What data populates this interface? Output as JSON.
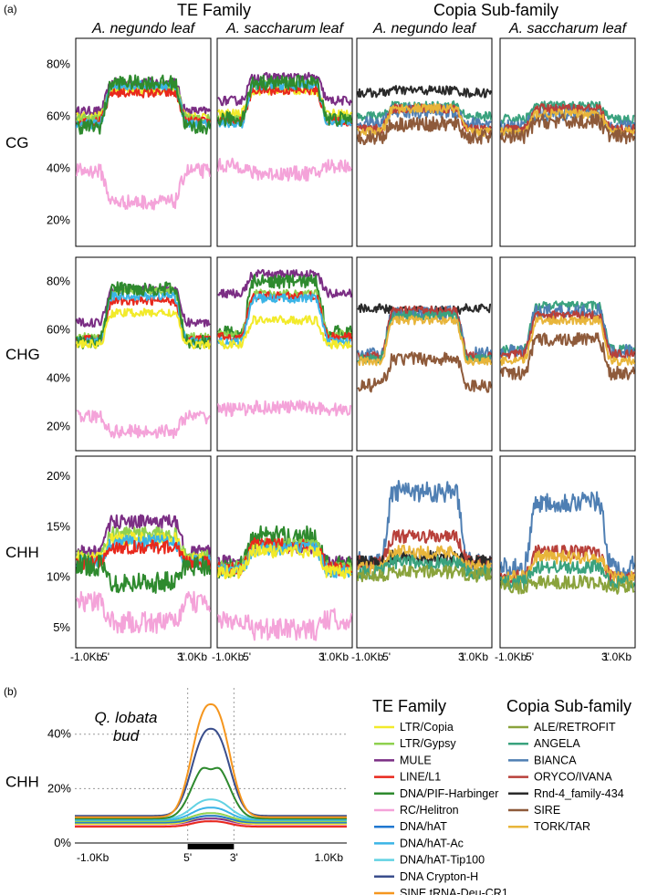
{
  "figure": {
    "label_a": "(a)",
    "label_b": "(b)"
  },
  "colors": {
    "LTR/Copia": "#f2ea2a",
    "LTR/Gypsy": "#8fd14f",
    "MULE": "#7b2e84",
    "LINE/L1": "#e8281c",
    "DNA/PIF-Harbinger": "#2e8a2e",
    "RC/Helitron": "#f4a3d9",
    "DNA/hAT": "#1f77d0",
    "DNA/hAT-Ac": "#3ab4e6",
    "DNA/hAT-Tip100": "#62d2e3",
    "DNA Crypton-H": "#3a4e8c",
    "SINE tRNA-Deu-CR1": "#f5961e",
    "ALE/RETROFIT": "#8aa33c",
    "ANGELA": "#3aa27e",
    "BIANCA": "#4f7fb3",
    "ORYCO/IVANA": "#b8403a",
    "Rnd-4_family-434": "#2a2a2a",
    "SIRE": "#8e5a3a",
    "TORK/TAR": "#e8b53a"
  },
  "chart_data": [
    {
      "type": "line",
      "panel": "a",
      "group_headers": [
        "TE Family",
        "Copia Sub-family"
      ],
      "column_titles": [
        "A. negundo leaf",
        "A. saccharum leaf",
        "A. negundo leaf",
        "A. saccharum leaf"
      ],
      "row_titles": [
        "CG",
        "CHG",
        "CHH"
      ],
      "x_ticks": [
        "-1.0Kb",
        "5'",
        "3'",
        "1.0Kb"
      ],
      "rows": [
        {
          "context": "CG",
          "ylim": [
            10,
            90
          ],
          "y_ticks": [
            "80%",
            "60%",
            "40%",
            "20%"
          ],
          "y_tick_values": [
            80,
            60,
            40,
            20
          ],
          "panels": [
            {
              "title": "A. negundo leaf",
              "series": [
                {
                  "name": "MULE",
                  "flank": 62,
                  "body": 73
                },
                {
                  "name": "LTR/Copia",
                  "flank": 60,
                  "body": 70
                },
                {
                  "name": "LTR/Gypsy",
                  "flank": 59,
                  "body": 72
                },
                {
                  "name": "LINE/L1",
                  "flank": 58,
                  "body": 69
                },
                {
                  "name": "DNA/hAT-Ac",
                  "flank": 57,
                  "body": 72
                },
                {
                  "name": "DNA/PIF-Harbinger",
                  "flank": 56,
                  "body": 73
                },
                {
                  "name": "RC/Helitron",
                  "flank": 39,
                  "body": 27
                }
              ]
            },
            {
              "title": "A. saccharum leaf",
              "series": [
                {
                  "name": "MULE",
                  "flank": 66,
                  "body": 75
                },
                {
                  "name": "LTR/Copia",
                  "flank": 61,
                  "body": 70
                },
                {
                  "name": "LTR/Gypsy",
                  "flank": 59,
                  "body": 72
                },
                {
                  "name": "LINE/L1",
                  "flank": 58,
                  "body": 70
                },
                {
                  "name": "DNA/hAT-Ac",
                  "flank": 57,
                  "body": 72
                },
                {
                  "name": "DNA/PIF-Harbinger",
                  "flank": 59,
                  "body": 73
                },
                {
                  "name": "RC/Helitron",
                  "flank": 41,
                  "body": 38
                }
              ]
            },
            {
              "title": "A. negundo leaf",
              "series": [
                {
                  "name": "Rnd-4_family-434",
                  "flank": 69,
                  "body": 70
                },
                {
                  "name": "ANGELA",
                  "flank": 60,
                  "body": 64
                },
                {
                  "name": "BIANCA",
                  "flank": 57,
                  "body": 62
                },
                {
                  "name": "ORYCO/IVANA",
                  "flank": 55,
                  "body": 63
                },
                {
                  "name": "TORK/TAR",
                  "flank": 54,
                  "body": 63
                },
                {
                  "name": "SIRE",
                  "flank": 52,
                  "body": 57
                }
              ]
            },
            {
              "title": "A. saccharum leaf",
              "series": [
                {
                  "name": "ANGELA",
                  "flank": 59,
                  "body": 64
                },
                {
                  "name": "BIANCA",
                  "flank": 56,
                  "body": 61
                },
                {
                  "name": "ORYCO/IVANA",
                  "flank": 55,
                  "body": 63
                },
                {
                  "name": "TORK/TAR",
                  "flank": 54,
                  "body": 61
                },
                {
                  "name": "SIRE",
                  "flank": 52,
                  "body": 58
                }
              ]
            }
          ]
        },
        {
          "context": "CHG",
          "ylim": [
            10,
            90
          ],
          "y_ticks": [
            "80%",
            "60%",
            "40%",
            "20%"
          ],
          "y_tick_values": [
            80,
            60,
            40,
            20
          ],
          "panels": [
            {
              "title": "A. negundo leaf",
              "series": [
                {
                  "name": "MULE",
                  "flank": 63,
                  "body": 77
                },
                {
                  "name": "LTR/Gypsy",
                  "flank": 57,
                  "body": 76
                },
                {
                  "name": "LINE/L1",
                  "flank": 56,
                  "body": 72
                },
                {
                  "name": "DNA/hAT-Ac",
                  "flank": 55,
                  "body": 74
                },
                {
                  "name": "DNA/PIF-Harbinger",
                  "flank": 55,
                  "body": 77
                },
                {
                  "name": "LTR/Copia",
                  "flank": 54,
                  "body": 67
                },
                {
                  "name": "RC/Helitron",
                  "flank": 24,
                  "body": 18
                }
              ]
            },
            {
              "title": "A. saccharum leaf",
              "series": [
                {
                  "name": "MULE",
                  "flank": 75,
                  "body": 83
                },
                {
                  "name": "DNA/PIF-Harbinger",
                  "flank": 59,
                  "body": 80
                },
                {
                  "name": "LTR/Gypsy",
                  "flank": 58,
                  "body": 75
                },
                {
                  "name": "LINE/L1",
                  "flank": 57,
                  "body": 74
                },
                {
                  "name": "DNA/hAT-Ac",
                  "flank": 55,
                  "body": 73
                },
                {
                  "name": "LTR/Copia",
                  "flank": 54,
                  "body": 64
                },
                {
                  "name": "RC/Helitron",
                  "flank": 27,
                  "body": 28
                }
              ]
            },
            {
              "title": "A. negundo leaf",
              "series": [
                {
                  "name": "Rnd-4_family-434",
                  "flank": 69,
                  "body": 68
                },
                {
                  "name": "BIANCA",
                  "flank": 50,
                  "body": 67
                },
                {
                  "name": "ORYCO/IVANA",
                  "flank": 49,
                  "body": 68
                },
                {
                  "name": "ANGELA",
                  "flank": 48,
                  "body": 66
                },
                {
                  "name": "TORK/TAR",
                  "flank": 47,
                  "body": 64
                },
                {
                  "name": "SIRE",
                  "flank": 37,
                  "body": 48
                }
              ]
            },
            {
              "title": "A. saccharum leaf",
              "series": [
                {
                  "name": "ANGELA",
                  "flank": 52,
                  "body": 70
                },
                {
                  "name": "BIANCA",
                  "flank": 51,
                  "body": 68
                },
                {
                  "name": "ORYCO/IVANA",
                  "flank": 50,
                  "body": 66
                },
                {
                  "name": "TORK/TAR",
                  "flank": 47,
                  "body": 64
                },
                {
                  "name": "SIRE",
                  "flank": 42,
                  "body": 56
                }
              ]
            }
          ]
        },
        {
          "context": "CHH",
          "ylim": [
            3,
            22
          ],
          "y_ticks": [
            "20%",
            "15%",
            "10%",
            "5%"
          ],
          "y_tick_values": [
            20,
            15,
            10,
            5
          ],
          "panels": [
            {
              "title": "A. negundo leaf",
              "series": [
                {
                  "name": "MULE",
                  "flank": 12.5,
                  "body": 15.5
                },
                {
                  "name": "LTR/Gypsy",
                  "flank": 12,
                  "body": 14.3
                },
                {
                  "name": "LTR/Copia",
                  "flank": 11.8,
                  "body": 13.8
                },
                {
                  "name": "DNA/hAT-Ac",
                  "flank": 11.5,
                  "body": 13.5
                },
                {
                  "name": "LINE/L1",
                  "flank": 11.4,
                  "body": 13.0
                },
                {
                  "name": "DNA/PIF-Harbinger",
                  "flank": 11.2,
                  "body": 9.5
                },
                {
                  "name": "RC/Helitron",
                  "flank": 7.5,
                  "body": 5.5
                }
              ]
            },
            {
              "title": "A. saccharum leaf",
              "series": [
                {
                  "name": "MULE",
                  "flank": 11.5,
                  "body": 13.0
                },
                {
                  "name": "DNA/PIF-Harbinger",
                  "flank": 11.0,
                  "body": 14.0
                },
                {
                  "name": "LTR/Gypsy",
                  "flank": 11.0,
                  "body": 13.2
                },
                {
                  "name": "LINE/L1",
                  "flank": 10.8,
                  "body": 13.2
                },
                {
                  "name": "DNA/hAT-Ac",
                  "flank": 10.6,
                  "body": 12.8
                },
                {
                  "name": "LTR/Copia",
                  "flank": 10.5,
                  "body": 12.6
                },
                {
                  "name": "RC/Helitron",
                  "flank": 5.8,
                  "body": 4.8
                }
              ]
            },
            {
              "title": "A. negundo leaf",
              "series": [
                {
                  "name": "BIANCA",
                  "flank": 11.5,
                  "body": 18.5
                },
                {
                  "name": "ORYCO/IVANA",
                  "flank": 11.5,
                  "body": 14.0
                },
                {
                  "name": "Rnd-4_family-434",
                  "flank": 11.5,
                  "body": 12.0
                },
                {
                  "name": "TORK/TAR",
                  "flank": 11.0,
                  "body": 12.5
                },
                {
                  "name": "ANGELA",
                  "flank": 10.5,
                  "body": 11.5
                },
                {
                  "name": "ALE/RETROFIT",
                  "flank": 10.2,
                  "body": 10.5
                }
              ]
            },
            {
              "title": "A. saccharum leaf",
              "series": [
                {
                  "name": "BIANCA",
                  "flank": 11.0,
                  "body": 17.5
                },
                {
                  "name": "ORYCO/IVANA",
                  "flank": 10.0,
                  "body": 12.5
                },
                {
                  "name": "TORK/TAR",
                  "flank": 10.0,
                  "body": 12.0
                },
                {
                  "name": "ANGELA",
                  "flank": 9.5,
                  "body": 11.0
                },
                {
                  "name": "ALE/RETROFIT",
                  "flank": 9.0,
                  "body": 9.5
                }
              ]
            }
          ]
        }
      ]
    },
    {
      "type": "line",
      "panel": "b",
      "row_label": "CHH",
      "annotation": [
        "Q. lobata",
        "bud"
      ],
      "ylim": [
        0,
        55
      ],
      "y_ticks": [
        "0%",
        "20%",
        "40%"
      ],
      "y_tick_values": [
        0,
        20,
        40
      ],
      "x_ticks": [
        "-1.0Kb",
        "5'",
        "3'",
        "1.0Kb"
      ],
      "grid": true,
      "series": [
        {
          "name": "SINE tRNA-Deu-CR1",
          "flank": 9.5,
          "peak": 51
        },
        {
          "name": "DNA Crypton-H",
          "flank": 10.0,
          "peak": 42
        },
        {
          "name": "DNA/PIF-Harbinger",
          "flank": 9.0,
          "peak": 29.5
        },
        {
          "name": "DNA/hAT-Tip100",
          "flank": 9.0,
          "peak": 16
        },
        {
          "name": "DNA/hAT-Ac",
          "flank": 8.5,
          "peak": 13
        },
        {
          "name": "LTR/Gypsy",
          "flank": 8.0,
          "peak": 11
        },
        {
          "name": "DNA/hAT",
          "flank": 7.5,
          "peak": 10
        },
        {
          "name": "LTR/Copia",
          "flank": 7.0,
          "peak": 10
        },
        {
          "name": "MULE",
          "flank": 7.0,
          "peak": 9
        },
        {
          "name": "LINE/L1",
          "flank": 6.0,
          "peak": 8
        },
        {
          "name": "RC/Helitron",
          "flank": 6.5,
          "peak": 8
        }
      ],
      "legend": {
        "te_title": "TE Family",
        "te_items": [
          "LTR/Copia",
          "LTR/Gypsy",
          "MULE",
          "LINE/L1",
          "DNA/PIF-Harbinger",
          "RC/Helitron",
          "DNA/hAT",
          "DNA/hAT-Ac",
          "DNA/hAT-Tip100",
          "DNA Crypton-H",
          "SINE tRNA-Deu-CR1"
        ],
        "copia_title": "Copia Sub-family",
        "copia_items": [
          "ALE/RETROFIT",
          "ANGELA",
          "BIANCA",
          "ORYCO/IVANA",
          "Rnd-4_family-434",
          "SIRE",
          "TORK/TAR"
        ]
      }
    }
  ]
}
